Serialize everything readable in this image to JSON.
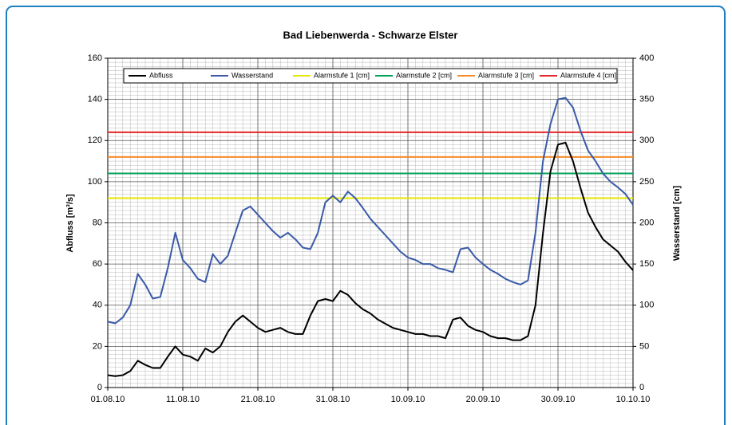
{
  "chart_data": {
    "type": "line",
    "title": "Bad Liebenwerda - Schwarze Elster",
    "y_label": "Abfluss [m³/s]",
    "y2_label": "Wasserstand [cm]",
    "x": [
      "01.08.10",
      "02.08.10",
      "03.08.10",
      "04.08.10",
      "05.08.10",
      "06.08.10",
      "07.08.10",
      "08.08.10",
      "09.08.10",
      "10.08.10",
      "11.08.10",
      "12.08.10",
      "13.08.10",
      "14.08.10",
      "15.08.10",
      "16.08.10",
      "17.08.10",
      "18.08.10",
      "19.08.10",
      "20.08.10",
      "21.08.10",
      "22.08.10",
      "23.08.10",
      "24.08.10",
      "25.08.10",
      "26.08.10",
      "27.08.10",
      "28.08.10",
      "29.08.10",
      "30.08.10",
      "31.08.10",
      "01.09.10",
      "02.09.10",
      "03.09.10",
      "04.09.10",
      "05.09.10",
      "06.09.10",
      "07.09.10",
      "08.09.10",
      "09.09.10",
      "10.09.10",
      "11.09.10",
      "12.09.10",
      "13.09.10",
      "14.09.10",
      "15.09.10",
      "16.09.10",
      "17.09.10",
      "18.09.10",
      "19.09.10",
      "20.09.10",
      "21.09.10",
      "22.09.10",
      "23.09.10",
      "24.09.10",
      "25.09.10",
      "26.09.10",
      "27.09.10",
      "28.09.10",
      "29.09.10",
      "30.09.10",
      "01.10.10",
      "02.10.10",
      "03.10.10",
      "04.10.10",
      "05.10.10",
      "06.10.10",
      "07.10.10",
      "08.10.10",
      "09.10.10",
      "10.10.10"
    ],
    "series": [
      {
        "name": "Abfluss",
        "color": "#000000",
        "axis": "y",
        "values": [
          6,
          5.5,
          6,
          8,
          13,
          11,
          9.5,
          9.5,
          15,
          20,
          16,
          15,
          13,
          19,
          17,
          20,
          27,
          32,
          35,
          32,
          29,
          27,
          28,
          29,
          27,
          26,
          26,
          35,
          42,
          43,
          42,
          47,
          45,
          41,
          38,
          36,
          33,
          31,
          29,
          28,
          27,
          26,
          26,
          25,
          25,
          24,
          33,
          34,
          30,
          28,
          27,
          25,
          24,
          24,
          23,
          23,
          25,
          40,
          75,
          105,
          118,
          119,
          110,
          97,
          85,
          78,
          72,
          69,
          66,
          61,
          57
        ]
      },
      {
        "name": "Wasserstand",
        "color": "#3a5aa8",
        "axis": "y2",
        "values": [
          80,
          78,
          85,
          100,
          138,
          125,
          108,
          110,
          145,
          188,
          155,
          145,
          132,
          128,
          162,
          150,
          160,
          188,
          215,
          220,
          210,
          200,
          190,
          182,
          188,
          180,
          170,
          168,
          188,
          225,
          233,
          225,
          238,
          230,
          218,
          205,
          195,
          185,
          175,
          165,
          158,
          155,
          150,
          150,
          145,
          143,
          140,
          168,
          170,
          158,
          150,
          143,
          138,
          132,
          128,
          125,
          130,
          188,
          275,
          320,
          350,
          352,
          340,
          312,
          288,
          275,
          260,
          250,
          243,
          235,
          222
        ]
      }
    ],
    "hlines": [
      {
        "name": "Alarmstufe 1 [cm]",
        "color": "#e6e600",
        "axis": "y2",
        "value": 230
      },
      {
        "name": "Alarmstufe 2 [cm]",
        "color": "#00a15a",
        "axis": "y2",
        "value": 260
      },
      {
        "name": "Alarmstufe 3 [cm]",
        "color": "#f28c28",
        "axis": "y2",
        "value": 280
      },
      {
        "name": "Alarmstufe 4 [cm]",
        "color": "#e3262a",
        "axis": "y2",
        "value": 310
      }
    ],
    "xlim": [
      "01.08.10",
      "10.10.10"
    ],
    "xticks": [
      "01.08.10",
      "11.08.10",
      "21.08.10",
      "31.08.10",
      "10.09.10",
      "20.09.10",
      "30.09.10",
      "10.10.10"
    ],
    "ylim": [
      0,
      160
    ],
    "yticks": [
      0,
      20,
      40,
      60,
      80,
      100,
      120,
      140,
      160
    ],
    "y2lim": [
      0,
      400
    ],
    "y2ticks": [
      0,
      50,
      100,
      150,
      200,
      250,
      300,
      350,
      400
    ],
    "grid": true,
    "legend": "top"
  }
}
